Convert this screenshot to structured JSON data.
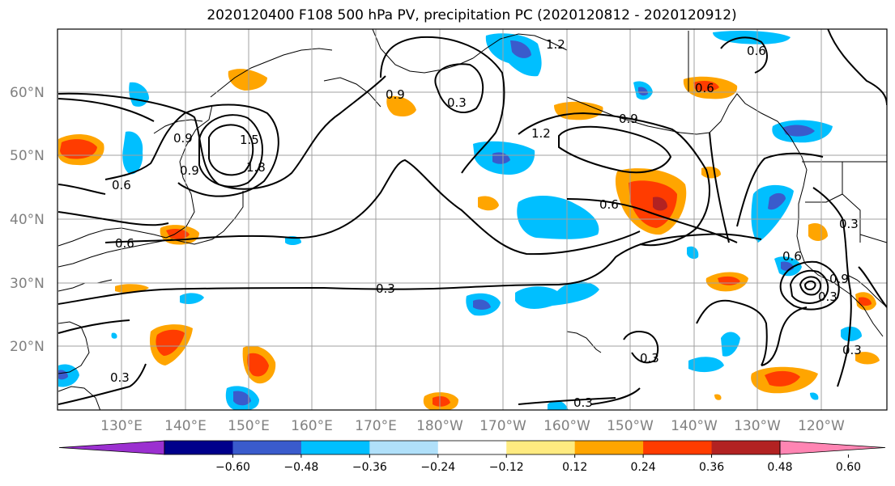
{
  "title": "2020120400 F108 500 hPa PV, precipitation PC (2020120812 - 2020120912)",
  "map": {
    "lat_labels": [
      "60°N",
      "50°N",
      "40°N",
      "30°N",
      "20°N"
    ],
    "lon_labels": [
      "130°E",
      "140°E",
      "150°E",
      "160°E",
      "170°E",
      "180°W",
      "170°W",
      "160°W",
      "150°W",
      "140°W",
      "130°W",
      "120°W"
    ],
    "contour_labels": [
      "0.9",
      "1.5",
      "1.8",
      "0.6",
      "0.9",
      "0.6",
      "0.3",
      "0.3",
      "0.9",
      "1.2",
      "0.6",
      "0.3",
      "0.9",
      "0.6",
      "1.2",
      "0.3",
      "0.3",
      "0.3",
      "0.3",
      "0.6",
      "0.6",
      "0.9",
      "0.3"
    ]
  },
  "colorbar": {
    "ticks": [
      "−0.60",
      "−0.48",
      "−0.36",
      "−0.24",
      "−0.12",
      "0.12",
      "0.24",
      "0.36",
      "0.48",
      "0.60"
    ],
    "colors": [
      "#9b30d0",
      "#00008b",
      "#3a5bcc",
      "#00bfff",
      "#b0e0fa",
      "#ffffff",
      "#ffeb80",
      "#ffa500",
      "#ff3c00",
      "#b22222",
      "#ff85b3"
    ]
  },
  "colors": {
    "grid": "#a0a0a0",
    "coast": "#000000",
    "contour": "#000000"
  }
}
